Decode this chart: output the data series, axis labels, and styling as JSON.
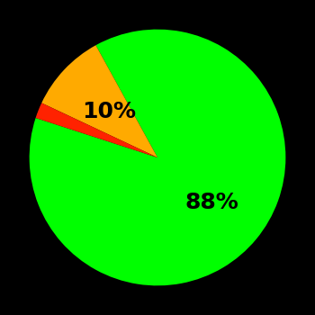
{
  "slices": [
    88,
    10,
    2
  ],
  "colors": [
    "#00ff00",
    "#ffaa00",
    "#ff2200"
  ],
  "background_color": "#000000",
  "startangle": 162,
  "figsize": [
    3.5,
    3.5
  ],
  "dpi": 100,
  "green_label": "88%",
  "yellow_label": "10%",
  "label_fontsize": 18,
  "label_color": "#000000"
}
